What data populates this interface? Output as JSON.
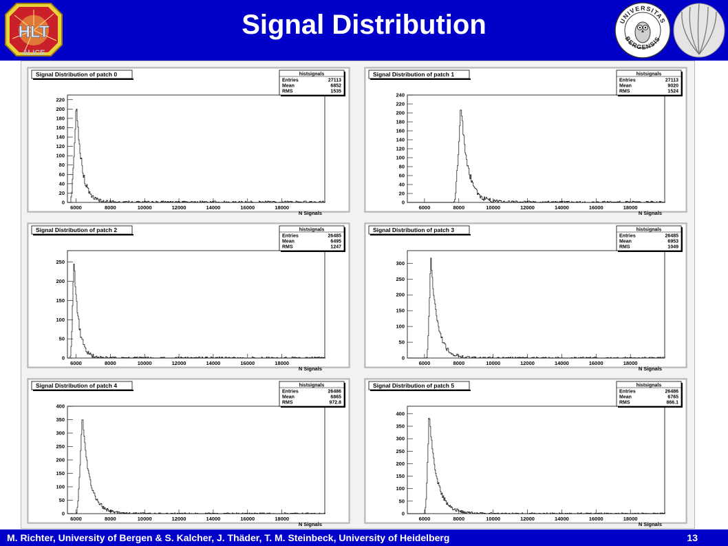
{
  "slide": {
    "title": "Signal Distribution",
    "footer": "M. Richter, University of Bergen & S. Kalcher, J.  Thäder, T. M. Steinbeck, University of Heidelberg",
    "page_number": "13",
    "logos": {
      "left": "ALICE",
      "seal": [
        "UNIVERSITAS",
        "BERGENSIS"
      ]
    }
  },
  "colors": {
    "header_bg": "#0000c8",
    "title": "#ffffff",
    "pad_bg": "#ffffff",
    "frame_bg": "#d9d9d9",
    "histogram": "#000000"
  },
  "chart_data": [
    {
      "type": "histogram",
      "title": "Signal Distribution of patch 0",
      "xlabel": "N Signals",
      "ylabel": "",
      "xlim": [
        5500,
        20500
      ],
      "ylim": [
        0,
        230
      ],
      "x_ticks": [
        6000,
        8000,
        10000,
        12000,
        14000,
        16000,
        18000
      ],
      "y_ticks": [
        0,
        20,
        40,
        60,
        80,
        100,
        120,
        140,
        160,
        180,
        200,
        220
      ],
      "stats": {
        "name": "histsignals",
        "entries": "27113",
        "mean": "6852",
        "rms": "1535"
      },
      "peak": {
        "x": 6000,
        "y": 222
      },
      "start": 5650,
      "rise_shape": 4.2,
      "tail_min": 0,
      "grid": false
    },
    {
      "type": "histogram",
      "title": "Signal Distribution of patch 1",
      "xlabel": "N Signals",
      "ylabel": "",
      "xlim": [
        5000,
        20000
      ],
      "ylim": [
        0,
        240
      ],
      "x_ticks": [
        6000,
        8000,
        10000,
        12000,
        14000,
        16000,
        18000
      ],
      "y_ticks": [
        0,
        20,
        40,
        60,
        80,
        100,
        120,
        140,
        160,
        180,
        200,
        220,
        240
      ],
      "stats": {
        "name": "histsignals",
        "entries": "27113",
        "mean": "9020",
        "rms": "1524"
      },
      "peak": {
        "x": 8100,
        "y": 225
      },
      "start": 7700,
      "rise_shape": 3.2,
      "tail_min": 0,
      "grid": false
    },
    {
      "type": "histogram",
      "title": "Signal Distribution of patch 2",
      "xlabel": "N Signals",
      "ylabel": "",
      "xlim": [
        5500,
        20500
      ],
      "ylim": [
        0,
        280
      ],
      "x_ticks": [
        6000,
        8000,
        10000,
        12000,
        14000,
        16000,
        18000
      ],
      "y_ticks": [
        0,
        50,
        100,
        150,
        200,
        250
      ],
      "stats": {
        "name": "histsignals",
        "entries": "26485",
        "mean": "6495",
        "rms": "1247"
      },
      "peak": {
        "x": 5850,
        "y": 262
      },
      "start": 5650,
      "rise_shape": 5.0,
      "tail_min": 0,
      "grid": false
    },
    {
      "type": "histogram",
      "title": "Signal Distribution of patch 3",
      "xlabel": "N Signals",
      "ylabel": "",
      "xlim": [
        5000,
        20000
      ],
      "ylim": [
        0,
        340
      ],
      "x_ticks": [
        6000,
        8000,
        10000,
        12000,
        14000,
        16000,
        18000
      ],
      "y_ticks": [
        0,
        50,
        100,
        150,
        200,
        250,
        300
      ],
      "stats": {
        "name": "histsignals",
        "entries": "26485",
        "mean": "6953",
        "rms": "1049"
      },
      "peak": {
        "x": 6350,
        "y": 320
      },
      "start": 6100,
      "rise_shape": 3.4,
      "tail_min": 0,
      "grid": false
    },
    {
      "type": "histogram",
      "title": "Signal Distribution of patch 4",
      "xlabel": "N Signals",
      "ylabel": "",
      "xlim": [
        5500,
        20500
      ],
      "ylim": [
        0,
        400
      ],
      "x_ticks": [
        6000,
        8000,
        10000,
        12000,
        14000,
        16000,
        18000
      ],
      "y_ticks": [
        0,
        50,
        100,
        150,
        200,
        250,
        300,
        350,
        400
      ],
      "stats": {
        "name": "histsignals",
        "entries": "26486",
        "mean": "6865",
        "rms": "972.8"
      },
      "peak": {
        "x": 6350,
        "y": 375
      },
      "start": 6000,
      "rise_shape": 3.0,
      "tail_min": 0,
      "grid": false
    },
    {
      "type": "histogram",
      "title": "Signal Distribution of patch 5",
      "xlabel": "N Signals",
      "ylabel": "",
      "xlim": [
        5000,
        20000
      ],
      "ylim": [
        0,
        430
      ],
      "x_ticks": [
        6000,
        8000,
        10000,
        12000,
        14000,
        16000,
        18000
      ],
      "y_ticks": [
        0,
        50,
        100,
        150,
        200,
        250,
        300,
        350,
        400
      ],
      "stats": {
        "name": "histsignals",
        "entries": "26486",
        "mean": "6765",
        "rms": "866.1"
      },
      "peak": {
        "x": 6250,
        "y": 408
      },
      "start": 6000,
      "rise_shape": 2.8,
      "tail_min": 0,
      "grid": false
    }
  ]
}
